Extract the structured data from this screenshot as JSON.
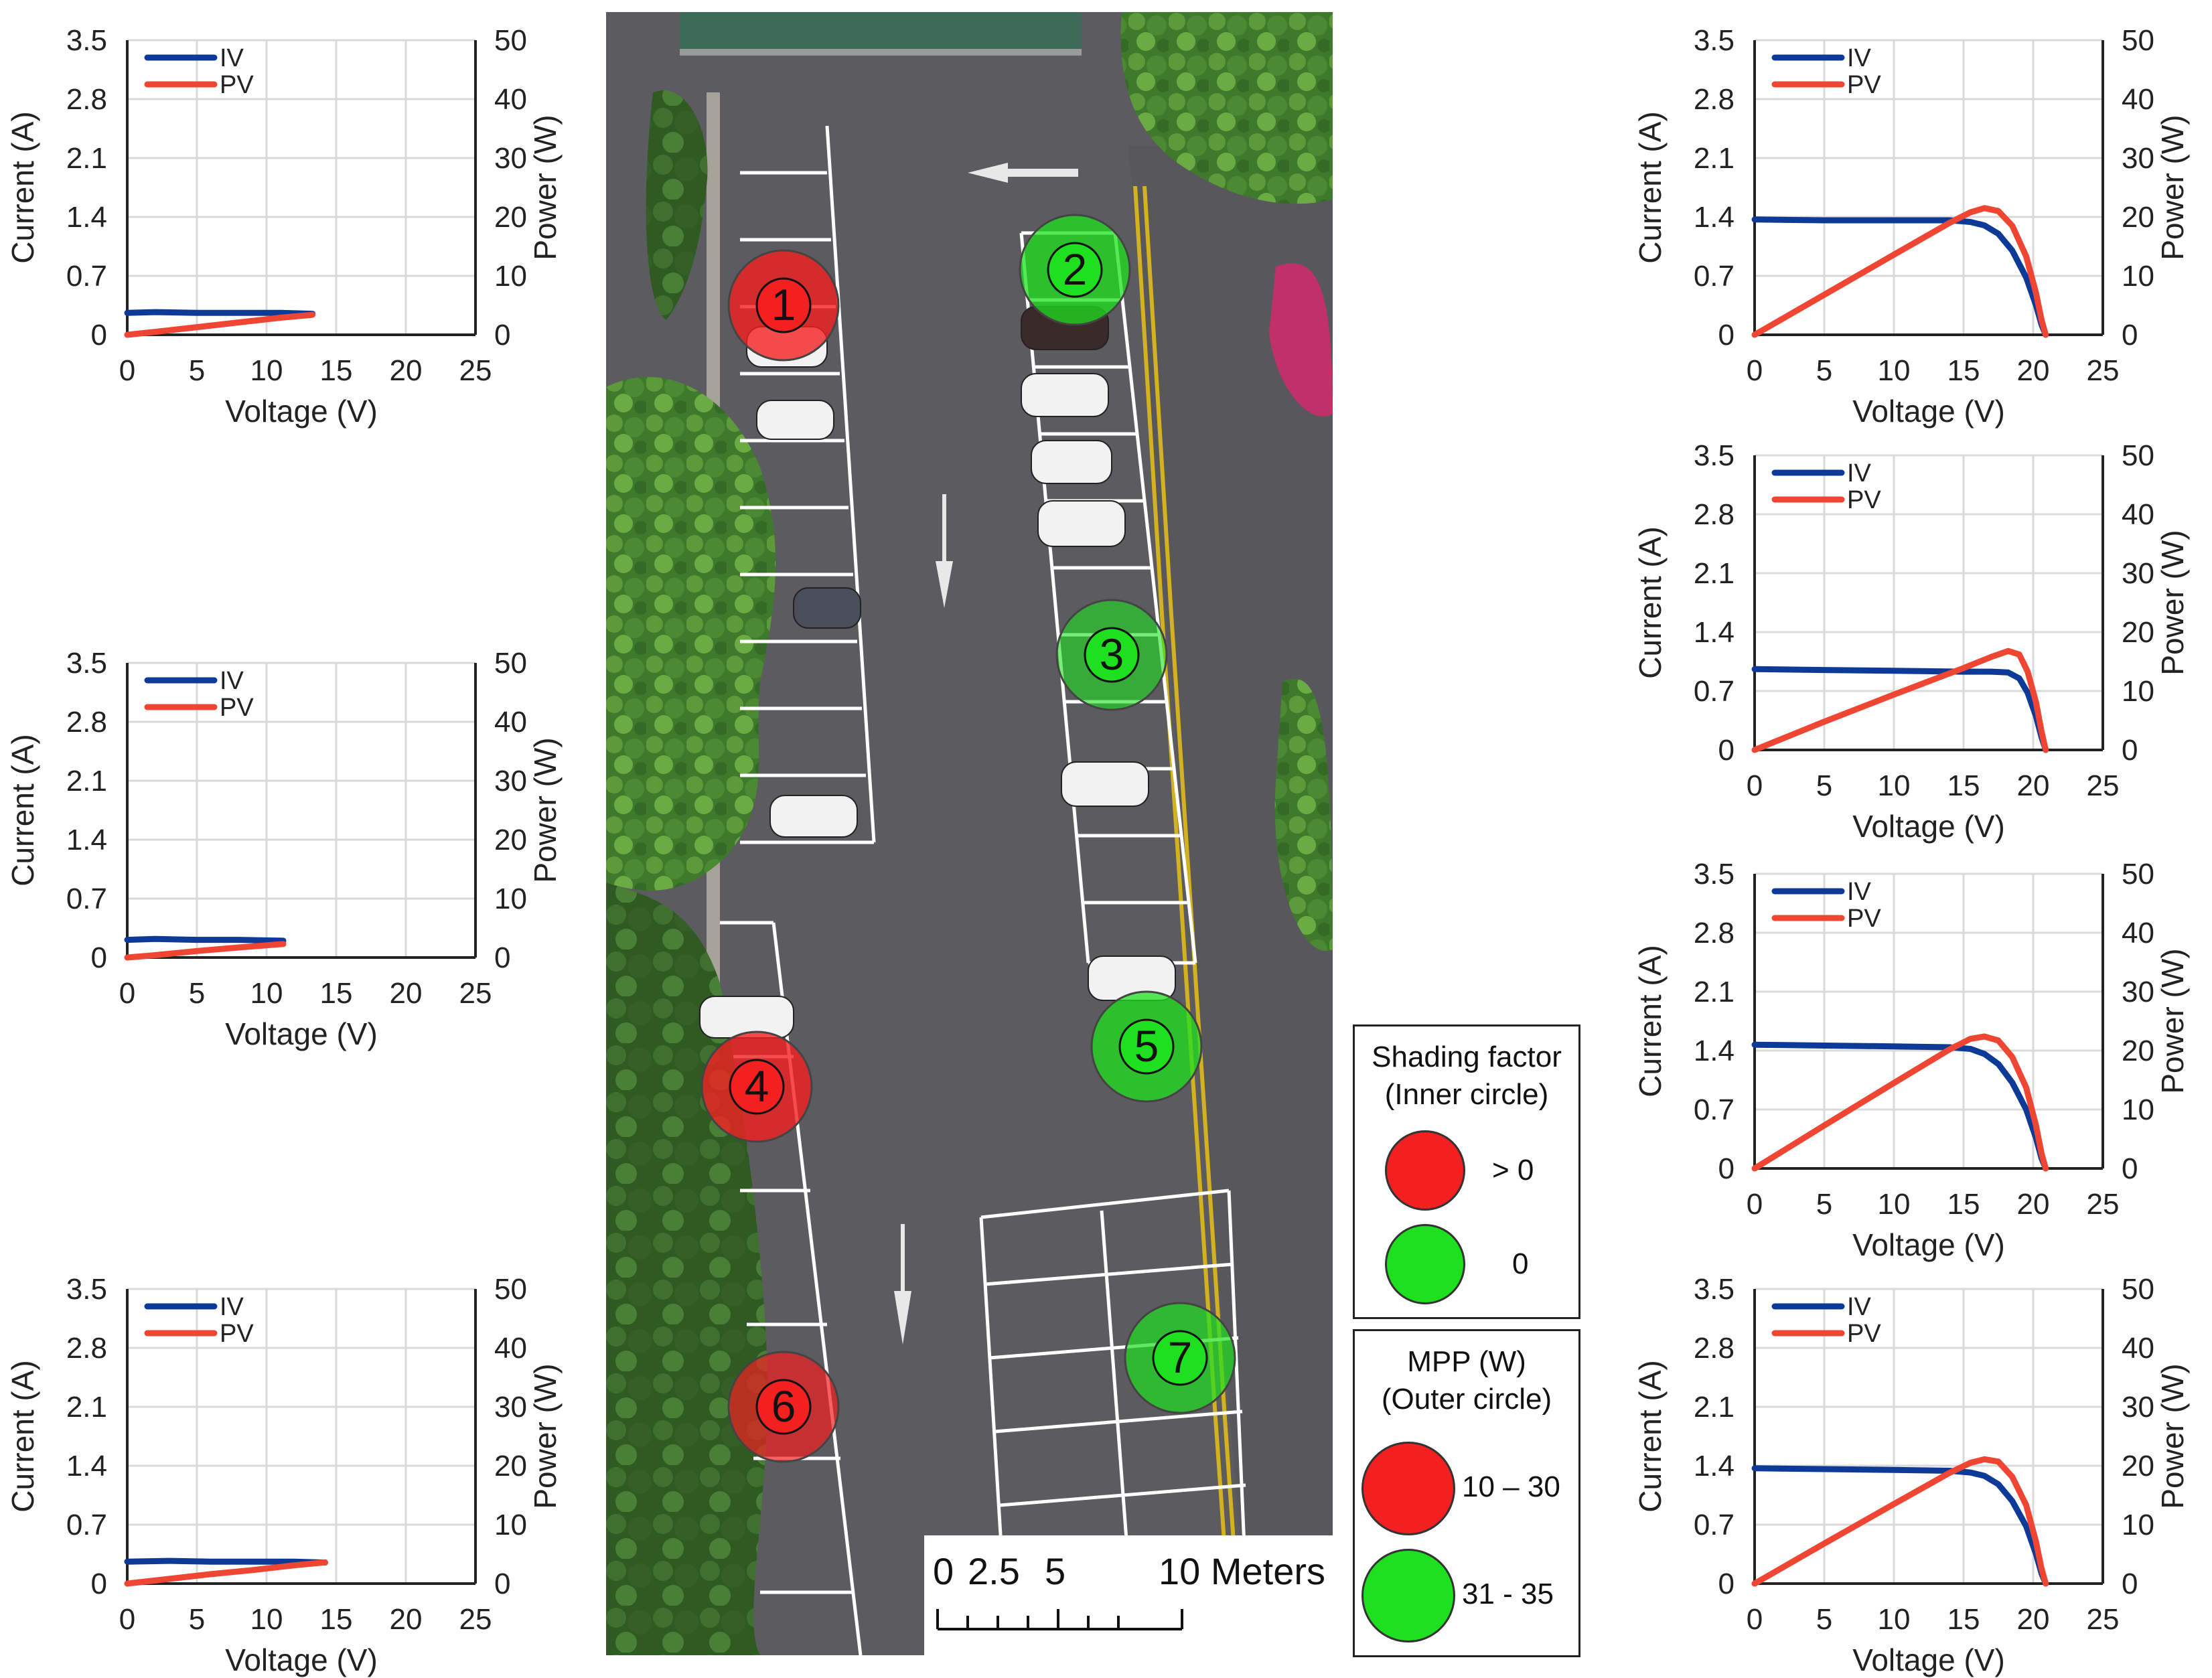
{
  "colors": {
    "iv": "#0d3a96",
    "pv": "#ef4634",
    "red_marker": "#f22020",
    "green_marker": "#1fe01f",
    "grid": "#d9d9d9"
  },
  "chart_data": [
    {
      "type": "line",
      "id": "panel-1",
      "xlabel": "Voltage (V)",
      "ylabel": "Current (A)",
      "y2label": "Power (W)",
      "xlim": [
        0,
        25
      ],
      "ylim": [
        0,
        3.5
      ],
      "y2lim": [
        0,
        50
      ],
      "xticks": [
        "0",
        "5",
        "10",
        "15",
        "20",
        "25"
      ],
      "yticks": [
        "0",
        "0.7",
        "1.4",
        "2.1",
        "2.8",
        "3.5"
      ],
      "y2ticks": [
        "0",
        "10",
        "20",
        "30",
        "40",
        "50"
      ],
      "grid": true,
      "legend": "top-left",
      "series": [
        {
          "name": "IV",
          "axis": "left",
          "x": [
            0,
            2,
            5,
            8,
            11,
            13.3
          ],
          "y": [
            0.26,
            0.27,
            0.26,
            0.26,
            0.26,
            0.25
          ]
        },
        {
          "name": "PV",
          "axis": "right",
          "x": [
            0,
            2,
            5,
            8,
            11,
            13.3
          ],
          "y": [
            0,
            0.5,
            1.3,
            2.1,
            2.9,
            3.4
          ]
        }
      ]
    },
    {
      "type": "line",
      "id": "panel-4",
      "xlabel": "Voltage (V)",
      "ylabel": "Current (A)",
      "y2label": "Power (W)",
      "xlim": [
        0,
        25
      ],
      "ylim": [
        0,
        3.5
      ],
      "y2lim": [
        0,
        50
      ],
      "xticks": [
        "0",
        "5",
        "10",
        "15",
        "20",
        "25"
      ],
      "yticks": [
        "0",
        "0.7",
        "1.4",
        "2.1",
        "2.8",
        "3.5"
      ],
      "y2ticks": [
        "0",
        "10",
        "20",
        "30",
        "40",
        "50"
      ],
      "grid": true,
      "legend": "top-left",
      "series": [
        {
          "name": "IV",
          "axis": "left",
          "x": [
            0,
            2,
            5,
            8,
            11.2
          ],
          "y": [
            0.21,
            0.22,
            0.21,
            0.21,
            0.2
          ]
        },
        {
          "name": "PV",
          "axis": "right",
          "x": [
            0,
            2,
            5,
            8,
            11.2
          ],
          "y": [
            0,
            0.4,
            1.1,
            1.7,
            2.3
          ]
        }
      ]
    },
    {
      "type": "line",
      "id": "panel-6",
      "xlabel": "Voltage (V)",
      "ylabel": "Current (A)",
      "y2label": "Power (W)",
      "xlim": [
        0,
        25
      ],
      "ylim": [
        0,
        3.5
      ],
      "y2lim": [
        0,
        50
      ],
      "xticks": [
        "0",
        "5",
        "10",
        "15",
        "20",
        "25"
      ],
      "yticks": [
        "0",
        "0.7",
        "1.4",
        "2.1",
        "2.8",
        "3.5"
      ],
      "y2ticks": [
        "0",
        "10",
        "20",
        "30",
        "40",
        "50"
      ],
      "grid": true,
      "legend": "top-left",
      "series": [
        {
          "name": "IV",
          "axis": "left",
          "x": [
            0,
            3,
            6,
            9,
            12,
            14.2
          ],
          "y": [
            0.26,
            0.27,
            0.26,
            0.26,
            0.26,
            0.25
          ]
        },
        {
          "name": "PV",
          "axis": "right",
          "x": [
            0,
            3,
            6,
            9,
            12,
            14.2
          ],
          "y": [
            0,
            0.8,
            1.6,
            2.3,
            3.1,
            3.6
          ]
        }
      ]
    },
    {
      "type": "line",
      "id": "panel-2",
      "xlabel": "Voltage (V)",
      "ylabel": "Current (A)",
      "y2label": "Power (W)",
      "xlim": [
        0,
        25
      ],
      "ylim": [
        0,
        3.5
      ],
      "y2lim": [
        0,
        50
      ],
      "xticks": [
        "0",
        "5",
        "10",
        "15",
        "20",
        "25"
      ],
      "yticks": [
        "0",
        "0.7",
        "1.4",
        "2.1",
        "2.8",
        "3.5"
      ],
      "y2ticks": [
        "0",
        "10",
        "20",
        "30",
        "40",
        "50"
      ],
      "grid": true,
      "legend": "top-left",
      "series": [
        {
          "name": "IV",
          "axis": "left",
          "x": [
            0,
            5,
            10,
            14,
            15.5,
            16.5,
            17.5,
            18.5,
            19.5,
            20.2,
            20.6,
            20.9
          ],
          "y": [
            1.37,
            1.36,
            1.36,
            1.36,
            1.34,
            1.3,
            1.2,
            1.0,
            0.68,
            0.35,
            0.12,
            0
          ]
        },
        {
          "name": "PV",
          "axis": "right",
          "x": [
            0,
            5,
            10,
            14,
            15.5,
            16.5,
            17.5,
            18.5,
            19.5,
            20.2,
            20.6,
            20.9
          ],
          "y": [
            0,
            6.8,
            13.6,
            19.0,
            20.8,
            21.5,
            21.0,
            18.5,
            13.3,
            7.1,
            2.5,
            0
          ]
        }
      ]
    },
    {
      "type": "line",
      "id": "panel-3",
      "xlabel": "Voltage (V)",
      "ylabel": "Current (A)",
      "y2label": "Power (W)",
      "xlim": [
        0,
        25
      ],
      "ylim": [
        0,
        3.5
      ],
      "y2lim": [
        0,
        50
      ],
      "xticks": [
        "0",
        "5",
        "10",
        "15",
        "20",
        "25"
      ],
      "yticks": [
        "0",
        "0.7",
        "1.4",
        "2.1",
        "2.8",
        "3.5"
      ],
      "y2ticks": [
        "0",
        "10",
        "20",
        "30",
        "40",
        "50"
      ],
      "grid": true,
      "legend": "top-left",
      "series": [
        {
          "name": "IV",
          "axis": "left",
          "x": [
            0,
            5,
            10,
            15,
            17,
            18.2,
            19,
            19.6,
            20.2,
            20.6,
            20.9
          ],
          "y": [
            0.96,
            0.95,
            0.94,
            0.93,
            0.93,
            0.92,
            0.85,
            0.68,
            0.4,
            0.15,
            0
          ]
        },
        {
          "name": "PV",
          "axis": "right",
          "x": [
            0,
            5,
            10,
            15,
            17,
            18.2,
            19,
            19.6,
            20.2,
            20.6,
            20.9
          ],
          "y": [
            0,
            4.8,
            9.4,
            13.9,
            15.8,
            16.8,
            16.2,
            13.3,
            8.1,
            3.1,
            0
          ]
        }
      ]
    },
    {
      "type": "line",
      "id": "panel-5",
      "xlabel": "Voltage (V)",
      "ylabel": "Current (A)",
      "y2label": "Power (W)",
      "xlim": [
        0,
        25
      ],
      "ylim": [
        0,
        3.5
      ],
      "y2lim": [
        0,
        50
      ],
      "xticks": [
        "0",
        "5",
        "10",
        "15",
        "20",
        "25"
      ],
      "yticks": [
        "0",
        "0.7",
        "1.4",
        "2.1",
        "2.8",
        "3.5"
      ],
      "y2ticks": [
        "0",
        "10",
        "20",
        "30",
        "40",
        "50"
      ],
      "grid": true,
      "legend": "top-left",
      "series": [
        {
          "name": "IV",
          "axis": "left",
          "x": [
            0,
            5,
            10,
            14,
            15.5,
            16.5,
            17.5,
            18.5,
            19.5,
            20.2,
            20.6,
            20.9
          ],
          "y": [
            1.47,
            1.46,
            1.45,
            1.44,
            1.42,
            1.36,
            1.24,
            1.02,
            0.7,
            0.36,
            0.12,
            0
          ]
        },
        {
          "name": "PV",
          "axis": "right",
          "x": [
            0,
            5,
            10,
            14,
            15.5,
            16.5,
            17.5,
            18.5,
            19.5,
            20.2,
            20.6,
            20.9
          ],
          "y": [
            0,
            7.3,
            14.5,
            20.2,
            22.0,
            22.4,
            21.7,
            18.9,
            13.7,
            7.3,
            2.5,
            0
          ]
        }
      ]
    },
    {
      "type": "line",
      "id": "panel-7",
      "xlabel": "Voltage (V)",
      "ylabel": "Current (A)",
      "y2label": "Power (W)",
      "xlim": [
        0,
        25
      ],
      "ylim": [
        0,
        3.5
      ],
      "y2lim": [
        0,
        50
      ],
      "xticks": [
        "0",
        "5",
        "10",
        "15",
        "20",
        "25"
      ],
      "yticks": [
        "0",
        "0.7",
        "1.4",
        "2.1",
        "2.8",
        "3.5"
      ],
      "y2ticks": [
        "0",
        "10",
        "20",
        "30",
        "40",
        "50"
      ],
      "grid": true,
      "legend": "top-left",
      "series": [
        {
          "name": "IV",
          "axis": "left",
          "x": [
            0,
            5,
            10,
            14,
            15.5,
            16.5,
            17.5,
            18.5,
            19.5,
            20.2,
            20.6,
            20.9
          ],
          "y": [
            1.37,
            1.36,
            1.35,
            1.34,
            1.32,
            1.28,
            1.18,
            0.98,
            0.68,
            0.35,
            0.12,
            0
          ]
        },
        {
          "name": "PV",
          "axis": "right",
          "x": [
            0,
            5,
            10,
            14,
            15.5,
            16.5,
            17.5,
            18.5,
            19.5,
            20.2,
            20.6,
            20.9
          ],
          "y": [
            0,
            6.8,
            13.5,
            18.8,
            20.5,
            21.1,
            20.7,
            18.1,
            13.3,
            7.1,
            2.5,
            0
          ]
        }
      ]
    }
  ],
  "map": {
    "markers": [
      {
        "label": "1",
        "status": "red"
      },
      {
        "label": "2",
        "status": "green"
      },
      {
        "label": "3",
        "status": "green"
      },
      {
        "label": "4",
        "status": "red"
      },
      {
        "label": "5",
        "status": "green"
      },
      {
        "label": "6",
        "status": "red"
      },
      {
        "label": "7",
        "status": "green"
      }
    ],
    "scale_bar": {
      "labels": [
        "0",
        "2.5",
        "5",
        "10 Meters"
      ]
    }
  },
  "legend": {
    "shading": {
      "title_line1": "Shading factor",
      "title_line2": "(Inner circle)",
      "items": [
        {
          "label": "> 0",
          "color": "#f22020"
        },
        {
          "label": "0",
          "color": "#1fe01f"
        }
      ]
    },
    "mpp": {
      "title_line1": "MPP (W)",
      "title_line2": "(Outer circle)",
      "items": [
        {
          "label": "10 – 30",
          "color": "#f22020"
        },
        {
          "label": "31 - 35",
          "color": "#1fe01f"
        }
      ]
    }
  }
}
